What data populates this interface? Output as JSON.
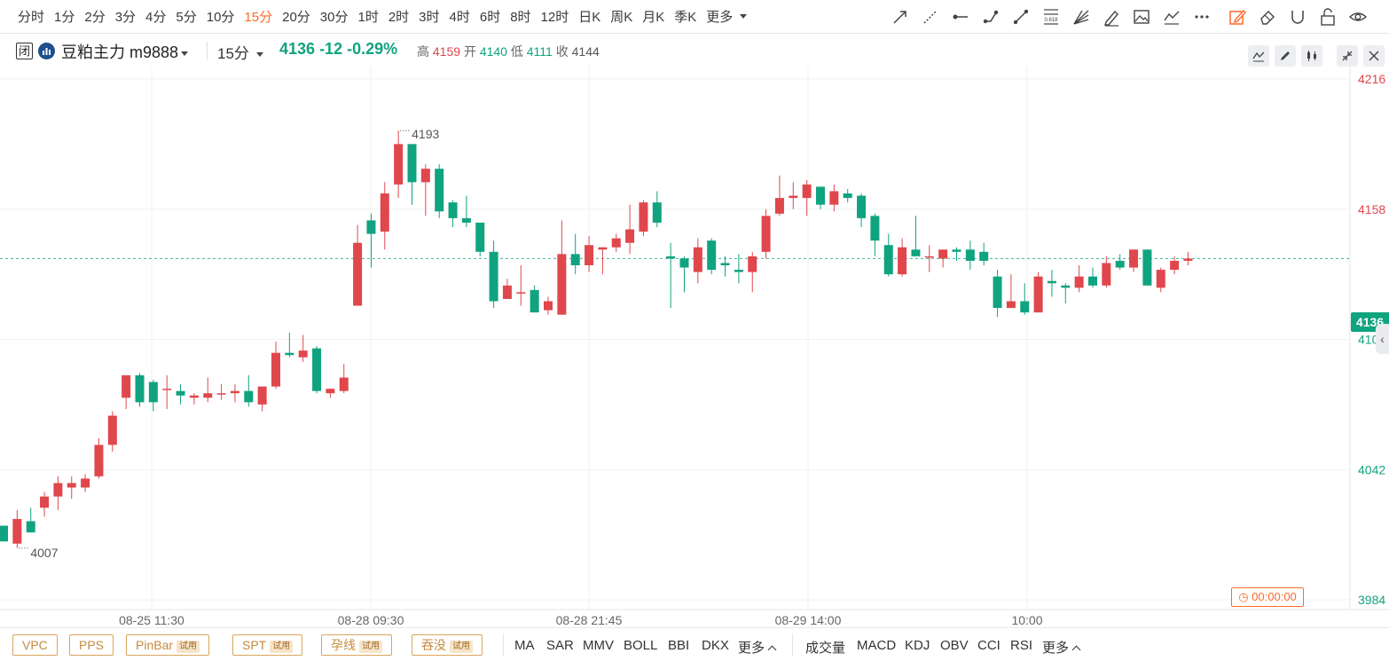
{
  "toolbar": {
    "periods": [
      "分时",
      "1分",
      "2分",
      "3分",
      "4分",
      "5分",
      "10分",
      "15分",
      "20分",
      "30分",
      "1时",
      "2时",
      "3时",
      "4时",
      "6时",
      "8时",
      "12时",
      "日K",
      "周K",
      "月K",
      "季K",
      "更多"
    ],
    "active_period": "15分",
    "fib_label": "0.618"
  },
  "info": {
    "status": "闭",
    "symbol": "豆粕主力 m9888",
    "interval": "15分",
    "last": "4136",
    "change": "-12",
    "change_pct": "-0.29%",
    "high_label": "高",
    "high": "4159",
    "open_label": "开",
    "open": "4140",
    "low_label": "低",
    "low": "4111",
    "close_label": "收",
    "close": "4144"
  },
  "axis": {
    "y_ticks": [
      "4216",
      "4158",
      "4100",
      "4042",
      "3984"
    ],
    "y_tick_colors": [
      "#e0474c",
      "#e0474c",
      "#10a37f",
      "#10a37f",
      "#10a37f"
    ],
    "x_ticks": [
      "08-25 11:30",
      "08-28 09:30",
      "08-28 21:45",
      "08-29 14:00",
      "10:00"
    ],
    "current_price": "4136",
    "max_label": "4193",
    "min_label": "4007"
  },
  "timer": "00:00:00",
  "bottom": {
    "patterns": [
      "VPC",
      "PPS",
      "PinBar",
      "SPT",
      "孕线",
      "吞没"
    ],
    "trial_label": "试用",
    "main_indicators": [
      "MA",
      "SAR",
      "MMV",
      "BOLL",
      "BBI",
      "DKX"
    ],
    "sub_indicators": [
      "成交量",
      "MACD",
      "KDJ",
      "OBV",
      "CCI",
      "RSI"
    ],
    "more_label": "更多"
  },
  "colors": {
    "up": "#e0474c",
    "down": "#10a37f",
    "accent": "#ff6a2b"
  },
  "chart_data": {
    "type": "candlestick",
    "y_range": [
      3984,
      4216
    ],
    "y_ticks": [
      4216,
      4158,
      4100,
      4042,
      3984
    ],
    "current_price": 4136,
    "x_ticks": [
      "08-25 11:30",
      "08-28 09:30",
      "08-28 21:45",
      "08-29 14:00",
      "10:00"
    ],
    "candles": [
      {
        "o": 4017,
        "h": 4017,
        "c": 4010,
        "l": 4010
      },
      {
        "o": 4009,
        "h": 4024,
        "l": 4007,
        "c": 4020
      },
      {
        "o": 4019,
        "h": 4025,
        "l": 4014,
        "c": 4014
      },
      {
        "o": 4025,
        "h": 4032,
        "l": 4021,
        "c": 4030
      },
      {
        "o": 4030,
        "h": 4039,
        "l": 4024,
        "c": 4036
      },
      {
        "o": 4034,
        "h": 4039,
        "l": 4029,
        "c": 4036
      },
      {
        "o": 4034,
        "h": 4040,
        "l": 4032,
        "c": 4038
      },
      {
        "o": 4039,
        "h": 4056,
        "l": 4038,
        "c": 4053
      },
      {
        "o": 4053,
        "h": 4068,
        "l": 4050,
        "c": 4066
      },
      {
        "o": 4074,
        "h": 4082,
        "l": 4069,
        "c": 4084
      },
      {
        "o": 4084,
        "h": 4085,
        "l": 4070,
        "c": 4072
      },
      {
        "o": 4081,
        "h": 4082,
        "l": 4068,
        "c": 4072
      },
      {
        "o": 4078,
        "h": 4084,
        "l": 4069,
        "c": 4078
      },
      {
        "o": 4077,
        "h": 4080,
        "l": 4071,
        "c": 4075
      },
      {
        "o": 4074,
        "h": 4076,
        "l": 4071,
        "c": 4075
      },
      {
        "o": 4074,
        "h": 4083,
        "l": 4072,
        "c": 4076
      },
      {
        "o": 4076,
        "h": 4080,
        "l": 4073,
        "c": 4076
      },
      {
        "o": 4076,
        "h": 4080,
        "l": 4072,
        "c": 4077
      },
      {
        "o": 4077,
        "h": 4084,
        "l": 4070,
        "c": 4072
      },
      {
        "o": 4071,
        "h": 4078,
        "l": 4068,
        "c": 4079
      },
      {
        "o": 4079,
        "h": 4099,
        "l": 4078,
        "c": 4094
      },
      {
        "o": 4094,
        "h": 4103,
        "l": 4092,
        "c": 4093
      },
      {
        "o": 4092,
        "h": 4102,
        "l": 4090,
        "c": 4095
      },
      {
        "o": 4096,
        "h": 4097,
        "l": 4076,
        "c": 4077
      },
      {
        "o": 4076,
        "h": 4078,
        "l": 4074,
        "c": 4078
      },
      {
        "o": 4077,
        "h": 4089,
        "l": 4076,
        "c": 4083
      },
      {
        "o": 4115,
        "h": 4151,
        "l": 4115,
        "c": 4143
      },
      {
        "o": 4153,
        "h": 4156,
        "l": 4132,
        "c": 4147
      },
      {
        "o": 4148,
        "h": 4170,
        "l": 4140,
        "c": 4165
      },
      {
        "o": 4169,
        "h": 4193,
        "l": 4163,
        "c": 4187
      },
      {
        "o": 4187,
        "h": 4187,
        "l": 4160,
        "c": 4170
      },
      {
        "o": 4170,
        "h": 4178,
        "l": 4155,
        "c": 4176
      },
      {
        "o": 4176,
        "h": 4178,
        "l": 4154,
        "c": 4157
      },
      {
        "o": 4161,
        "h": 4162,
        "l": 4150,
        "c": 4154
      },
      {
        "o": 4154,
        "h": 4164,
        "l": 4150,
        "c": 4152
      },
      {
        "o": 4152,
        "h": 4152,
        "l": 4137,
        "c": 4139
      },
      {
        "o": 4139,
        "h": 4144,
        "l": 4114,
        "c": 4117
      },
      {
        "o": 4118,
        "h": 4127,
        "l": 4118,
        "c": 4124
      },
      {
        "o": 4121,
        "h": 4133,
        "l": 4115,
        "c": 4121
      },
      {
        "o": 4122,
        "h": 4124,
        "l": 4113,
        "c": 4112
      },
      {
        "o": 4113,
        "h": 4119,
        "l": 4111,
        "c": 4117
      },
      {
        "o": 4111,
        "h": 4153,
        "l": 4111,
        "c": 4138
      },
      {
        "o": 4138,
        "h": 4147,
        "l": 4129,
        "c": 4133
      },
      {
        "o": 4133,
        "h": 4146,
        "l": 4130,
        "c": 4142
      },
      {
        "o": 4140,
        "h": 4141,
        "l": 4129,
        "c": 4141
      },
      {
        "o": 4141,
        "h": 4147,
        "l": 4139,
        "c": 4145
      },
      {
        "o": 4143,
        "h": 4160,
        "l": 4138,
        "c": 4149
      },
      {
        "o": 4148,
        "h": 4162,
        "l": 4146,
        "c": 4161
      },
      {
        "o": 4161,
        "h": 4166,
        "l": 4150,
        "c": 4152
      },
      {
        "o": 4137,
        "h": 4143,
        "l": 4114,
        "c": 4136
      },
      {
        "o": 4136,
        "h": 4137,
        "l": 4121,
        "c": 4132
      },
      {
        "o": 4130,
        "h": 4145,
        "l": 4125,
        "c": 4141
      },
      {
        "o": 4144,
        "h": 4145,
        "l": 4129,
        "c": 4131
      },
      {
        "o": 4134,
        "h": 4137,
        "l": 4128,
        "c": 4133
      },
      {
        "o": 4131,
        "h": 4138,
        "l": 4125,
        "c": 4130
      },
      {
        "o": 4130,
        "h": 4139,
        "l": 4121,
        "c": 4137
      },
      {
        "o": 4139,
        "h": 4158,
        "l": 4136,
        "c": 4155
      },
      {
        "o": 4156,
        "h": 4173,
        "l": 4155,
        "c": 4163
      },
      {
        "o": 4163,
        "h": 4170,
        "l": 4158,
        "c": 4164
      },
      {
        "o": 4163,
        "h": 4171,
        "l": 4155,
        "c": 4169
      },
      {
        "o": 4168,
        "h": 4168,
        "l": 4158,
        "c": 4160
      },
      {
        "o": 4160,
        "h": 4169,
        "l": 4157,
        "c": 4166
      },
      {
        "o": 4165,
        "h": 4167,
        "l": 4161,
        "c": 4163
      },
      {
        "o": 4164,
        "h": 4165,
        "l": 4150,
        "c": 4154
      },
      {
        "o": 4155,
        "h": 4156,
        "l": 4137,
        "c": 4144
      },
      {
        "o": 4142,
        "h": 4147,
        "l": 4128,
        "c": 4129
      },
      {
        "o": 4129,
        "h": 4145,
        "l": 4128,
        "c": 4141
      },
      {
        "o": 4140,
        "h": 4155,
        "l": 4137,
        "c": 4137
      },
      {
        "o": 4137,
        "h": 4142,
        "l": 4130,
        "c": 4137
      },
      {
        "o": 4136,
        "h": 4140,
        "l": 4132,
        "c": 4140
      },
      {
        "o": 4140,
        "h": 4141,
        "l": 4135,
        "c": 4139
      },
      {
        "o": 4140,
        "h": 4144,
        "l": 4131,
        "c": 4135
      },
      {
        "o": 4139,
        "h": 4143,
        "l": 4133,
        "c": 4135
      },
      {
        "o": 4128,
        "h": 4131,
        "l": 4110,
        "c": 4114
      },
      {
        "o": 4114,
        "h": 4129,
        "l": 4114,
        "c": 4117
      },
      {
        "o": 4117,
        "h": 4125,
        "l": 4111,
        "c": 4112
      },
      {
        "o": 4112,
        "h": 4130,
        "l": 4112,
        "c": 4128
      },
      {
        "o": 4126,
        "h": 4131,
        "l": 4119,
        "c": 4125
      },
      {
        "o": 4124,
        "h": 4125,
        "l": 4116,
        "c": 4123
      },
      {
        "o": 4123,
        "h": 4133,
        "l": 4121,
        "c": 4128
      },
      {
        "o": 4128,
        "h": 4132,
        "l": 4123,
        "c": 4124
      },
      {
        "o": 4124,
        "h": 4137,
        "l": 4123,
        "c": 4134
      },
      {
        "o": 4135,
        "h": 4138,
        "l": 4131,
        "c": 4132
      },
      {
        "o": 4132,
        "h": 4140,
        "l": 4130,
        "c": 4140
      },
      {
        "o": 4140,
        "h": 4140,
        "l": 4124,
        "c": 4124
      },
      {
        "o": 4123,
        "h": 4132,
        "l": 4121,
        "c": 4131
      },
      {
        "o": 4131,
        "h": 4137,
        "l": 4129,
        "c": 4135
      },
      {
        "o": 4135,
        "h": 4139,
        "l": 4133,
        "c": 4136
      }
    ]
  }
}
